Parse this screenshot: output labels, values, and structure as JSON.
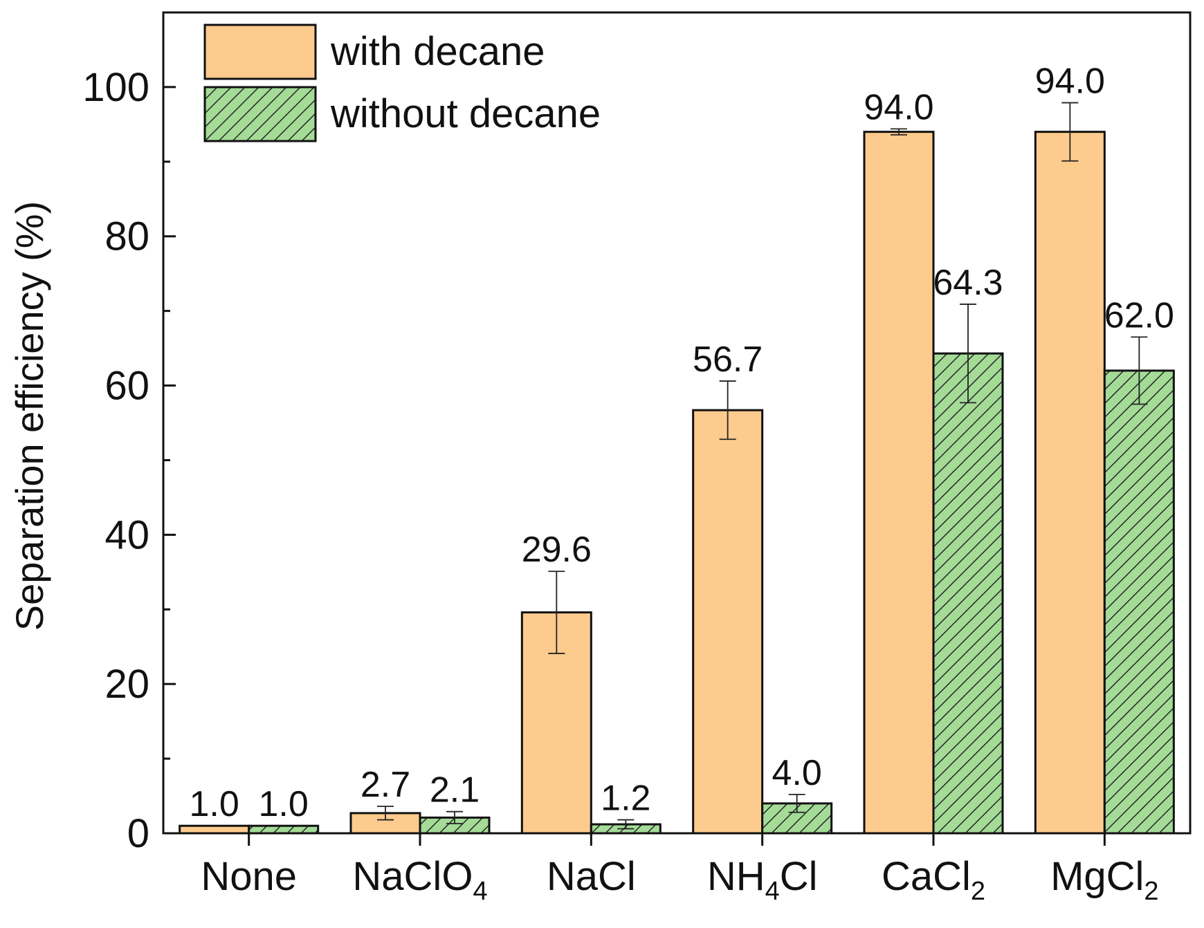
{
  "chart_data": {
    "type": "bar",
    "title": "",
    "xlabel": "",
    "ylabel": "Separation efficiency (%)",
    "ylim": [
      0,
      110
    ],
    "yticks": [
      0,
      20,
      40,
      60,
      80,
      100
    ],
    "y_minor_step": 10,
    "grid": false,
    "legend_position": "top-left",
    "categories": [
      {
        "main": "None",
        "sub": ""
      },
      {
        "main": "NaClO",
        "sub": "4"
      },
      {
        "main": "NaCl",
        "sub": ""
      },
      {
        "main": "NH",
        "sub": "4",
        "tail": "Cl"
      },
      {
        "main": "CaCl",
        "sub": "2"
      },
      {
        "main": "MgCl",
        "sub": "2"
      }
    ],
    "series": [
      {
        "name": "with decane",
        "color": "#FDCB8D",
        "hatch": false,
        "values": [
          1.0,
          2.7,
          29.6,
          56.7,
          94.0,
          94.0
        ],
        "errors": [
          0.0,
          0.9,
          5.5,
          3.9,
          0.4,
          3.9
        ],
        "labels": [
          "1.0",
          "2.7",
          "29.6",
          "56.7",
          "94.0",
          "94.0"
        ]
      },
      {
        "name": "without decane",
        "color": "#A3DB97",
        "hatch": true,
        "values": [
          1.0,
          2.1,
          1.2,
          4.0,
          64.3,
          62.0
        ],
        "errors": [
          0.0,
          0.8,
          0.6,
          1.2,
          6.6,
          4.5
        ],
        "labels": [
          "1.0",
          "2.1",
          "1.2",
          "4.0",
          "64.3",
          "62.0"
        ]
      }
    ]
  }
}
